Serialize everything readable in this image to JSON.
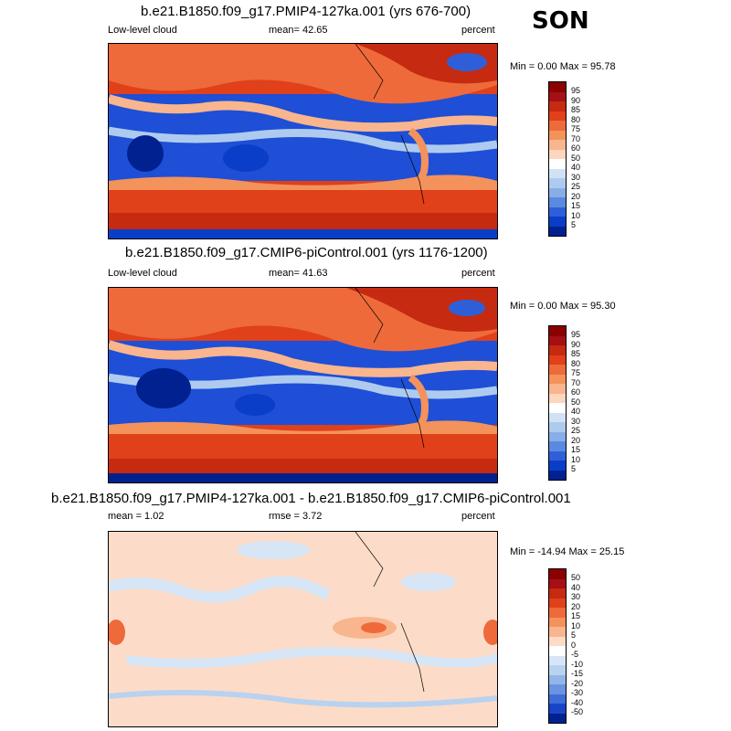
{
  "season": "SON",
  "panels": [
    {
      "title": "b.e21.B1850.f09_g17.PMIP4-127ka.001 (yrs 676-700)",
      "left_label": "Low-level cloud",
      "mid_label": "mean=  42.65",
      "right_label": "percent",
      "minmax": "Min =  0.00 Max =  95.78",
      "colorbar_labels": [
        "95",
        "90",
        "85",
        "80",
        "75",
        "70",
        "60",
        "50",
        "40",
        "30",
        "25",
        "20",
        "15",
        "10",
        "5"
      ],
      "colors": [
        "#8b0000",
        "#a50f15",
        "#c62a10",
        "#e0401a",
        "#ee6a3a",
        "#f4925c",
        "#f9b58e",
        "#fcd6bd",
        "#ffffff",
        "#d1e2f5",
        "#aecbef",
        "#87afe6",
        "#5a8ae0",
        "#2f5fd8",
        "#0a3ec8",
        "#00218f"
      ]
    },
    {
      "title": "b.e21.B1850.f09_g17.CMIP6-piControl.001 (yrs 1176-1200)",
      "left_label": "Low-level cloud",
      "mid_label": "mean=  41.63",
      "right_label": "percent",
      "minmax": "Min =  0.00 Max =  95.30",
      "colorbar_labels": [
        "95",
        "90",
        "85",
        "80",
        "75",
        "70",
        "60",
        "50",
        "40",
        "30",
        "25",
        "20",
        "15",
        "10",
        "5"
      ],
      "colors": [
        "#8b0000",
        "#a50f15",
        "#c62a10",
        "#e0401a",
        "#ee6a3a",
        "#f4925c",
        "#f9b58e",
        "#fcd6bd",
        "#ffffff",
        "#d1e2f5",
        "#aecbef",
        "#87afe6",
        "#5a8ae0",
        "#2f5fd8",
        "#0a3ec8",
        "#00218f"
      ]
    },
    {
      "title": "b.e21.B1850.f09_g17.PMIP4-127ka.001 - b.e21.B1850.f09_g17.CMIP6-piControl.001",
      "left_label": "mean =   1.02",
      "mid_label": "rmse =   3.72",
      "right_label": "percent",
      "minmax": "Min = -14.94 Max =  25.15",
      "colorbar_labels": [
        "50",
        "40",
        "30",
        "20",
        "15",
        "10",
        "5",
        "0",
        "-5",
        "-10",
        "-15",
        "-20",
        "-30",
        "-40",
        "-50"
      ],
      "colors": [
        "#8b0000",
        "#a50f15",
        "#c62a10",
        "#e0401a",
        "#ee6a3a",
        "#f4925c",
        "#f9b58e",
        "#fcdcc8",
        "#ffffff",
        "#d6e6f7",
        "#b8d2f0",
        "#92b6e8",
        "#6a94e2",
        "#3f6cd8",
        "#1a44c8",
        "#00218f"
      ]
    }
  ]
}
